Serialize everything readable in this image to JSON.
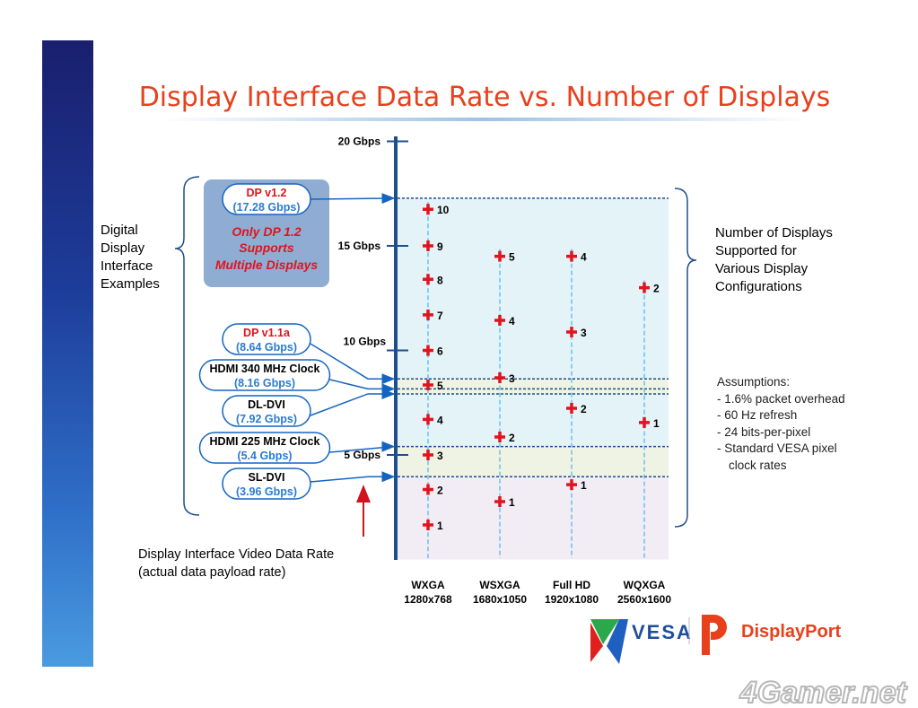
{
  "title": "Display Interface Data Rate vs. Number of Displays",
  "left_label": [
    "Digital",
    "Display",
    "Interface",
    "Examples"
  ],
  "right_label": [
    "Number of Displays",
    "Supported for",
    "Various Display",
    "Configurations"
  ],
  "assumptions": [
    "Assumptions:",
    "- 1.6% packet overhead",
    "- 60 Hz refresh",
    "- 24 bits-per-pixel",
    "- Standard VESA pixel",
    "clock rates"
  ],
  "bottom_note": [
    "Display Interface Video Data Rate",
    "(actual data payload rate)"
  ],
  "highlight_box": [
    "Only DP 1.2",
    "Supports",
    "Multiple Displays"
  ],
  "interfaces": [
    {
      "name": "DP v1.2",
      "rate_label": "(17.28 Gbps)",
      "gbps": 17.28,
      "name_color": "#e0141e"
    },
    {
      "name": "DP v1.1a",
      "rate_label": "(8.64 Gbps)",
      "gbps": 8.64,
      "name_color": "#e0141e"
    },
    {
      "name": "HDMI 340 MHz Clock",
      "rate_label": "(8.16 Gbps)",
      "gbps": 8.16,
      "name_color": "#000000"
    },
    {
      "name": "DL-DVI",
      "rate_label": "(7.92 Gbps)",
      "gbps": 7.92,
      "name_color": "#000000"
    },
    {
      "name": "HDMI 225 MHz Clock",
      "rate_label": "(5.4 Gbps)",
      "gbps": 5.4,
      "name_color": "#000000"
    },
    {
      "name": "SL-DVI",
      "rate_label": "(3.96 Gbps)",
      "gbps": 3.96,
      "name_color": "#000000"
    }
  ],
  "logos": {
    "vesa": "VESA",
    "displayport": "DisplayPort",
    "watermark": "4Gamer.net"
  },
  "colors": {
    "title": "#e8401c",
    "axis": "#1f4e8c",
    "marker": "#e0141e",
    "rate_text": "#2a7bd1",
    "band_blue": "#e3f3f8",
    "band_green": "#eef3e3",
    "band_lavender": "#f2ecf5"
  },
  "chart_data": {
    "type": "scatter",
    "title": "Display Interface Data Rate vs. Number of Displays",
    "ylabel": "Display Interface Video Data Rate",
    "ylim": [
      0,
      20
    ],
    "yticks": [
      {
        "v": 5,
        "label": "5 Gbps"
      },
      {
        "v": 10,
        "label": "10 Gbps"
      },
      {
        "v": 15,
        "label": "15 Gbps"
      },
      {
        "v": 20,
        "label": "20 Gbps"
      }
    ],
    "categories": [
      {
        "name": "WXGA",
        "res": "1280x768"
      },
      {
        "name": "WSXGA",
        "res": "1680x1050"
      },
      {
        "name": "Full HD",
        "res": "1920x1080"
      },
      {
        "name": "WQXGA",
        "res": "2560x1600"
      }
    ],
    "series": [
      {
        "name": "WXGA",
        "points": [
          {
            "n": "1",
            "gbps": 1.65
          },
          {
            "n": "2",
            "gbps": 3.35
          },
          {
            "n": "3",
            "gbps": 5.0
          },
          {
            "n": "4",
            "gbps": 6.7
          },
          {
            "n": "5",
            "gbps": 8.35
          },
          {
            "n": "6",
            "gbps": 10.0
          },
          {
            "n": "7",
            "gbps": 11.7
          },
          {
            "n": "8",
            "gbps": 13.4
          },
          {
            "n": "9",
            "gbps": 15.0
          },
          {
            "n": "10",
            "gbps": 16.75
          }
        ]
      },
      {
        "name": "WSXGA",
        "points": [
          {
            "n": "1",
            "gbps": 2.77
          },
          {
            "n": "2",
            "gbps": 5.86
          },
          {
            "n": "3",
            "gbps": 8.69
          },
          {
            "n": "4",
            "gbps": 11.44
          },
          {
            "n": "5",
            "gbps": 14.5
          }
        ]
      },
      {
        "name": "Full HD",
        "points": [
          {
            "n": "1",
            "gbps": 3.58
          },
          {
            "n": "2",
            "gbps": 7.23
          },
          {
            "n": "3",
            "gbps": 10.88
          },
          {
            "n": "4",
            "gbps": 14.5
          }
        ]
      },
      {
        "name": "WQXGA",
        "points": [
          {
            "n": "1",
            "gbps": 6.55
          },
          {
            "n": "2",
            "gbps": 13.0
          }
        ]
      }
    ]
  }
}
